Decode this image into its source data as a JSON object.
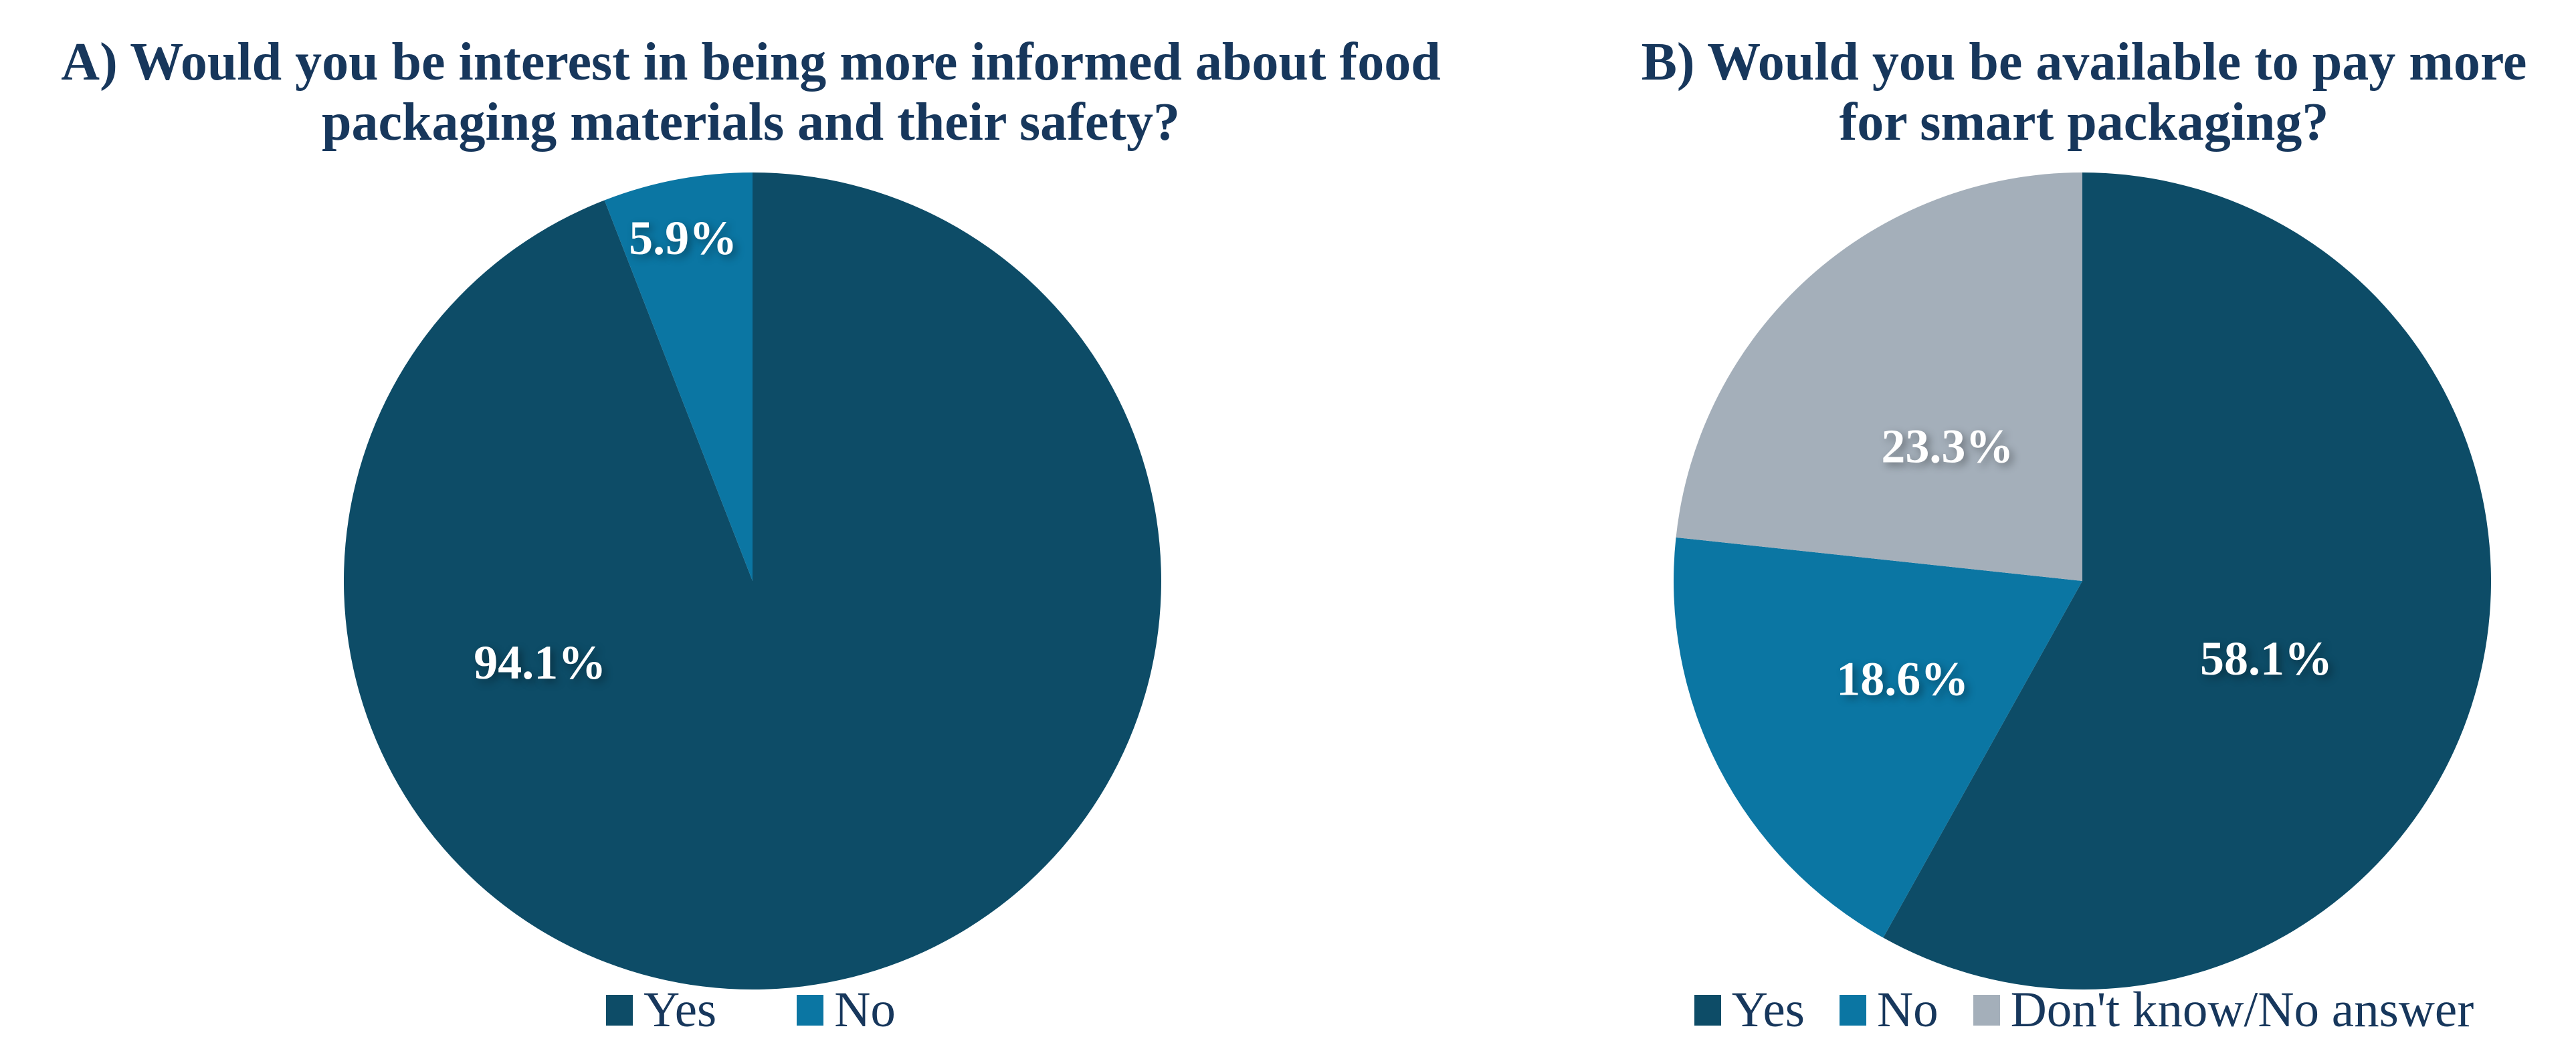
{
  "colors": {
    "background": "#ffffff",
    "title_text": "#17375c",
    "legend_text": "#17375c",
    "slice_label_text": "#ffffff",
    "series_dark_navy": "#0d4c67",
    "series_blue": "#0b76a3",
    "series_gray": "#a4afba"
  },
  "chart_data": [
    {
      "type": "pie",
      "title": "A) Would you be interest in being more informed about food packaging materials and their safety?",
      "title_line1": "A) Would you be interest in being more informed about food",
      "title_line2": "packaging materials and their safety?",
      "categories": [
        "Yes",
        "No"
      ],
      "values": [
        94.1,
        5.9
      ],
      "unit": "percent",
      "labels": [
        "94.1%",
        "5.9%"
      ],
      "colors": [
        "#0d4c67",
        "#0b76a3"
      ],
      "start_angle_deg": 0,
      "direction": "clockwise",
      "legend_position": "bottom",
      "label_pos": [
        {
          "fx": -0.52,
          "fy": 0.2
        },
        {
          "fx": -0.17,
          "fy": -0.84
        }
      ]
    },
    {
      "type": "pie",
      "title": "B) Would you be available to pay more for smart packaging?",
      "title_line1": "B) Would you be available to pay more",
      "title_line2": "for smart packaging?",
      "categories": [
        "Yes",
        "No",
        "Don't know/No answer"
      ],
      "values": [
        58.1,
        18.6,
        23.3
      ],
      "unit": "percent",
      "labels": [
        "58.1%",
        "18.6%",
        "23.3%"
      ],
      "colors": [
        "#0d4c67",
        "#0b76a3",
        "#a4afba"
      ],
      "start_angle_deg": 0,
      "direction": "clockwise",
      "legend_position": "bottom",
      "label_pos": [
        {
          "fx": 0.45,
          "fy": 0.19
        },
        {
          "fx": -0.44,
          "fy": 0.24
        },
        {
          "fx": -0.33,
          "fy": -0.33
        }
      ]
    }
  ]
}
